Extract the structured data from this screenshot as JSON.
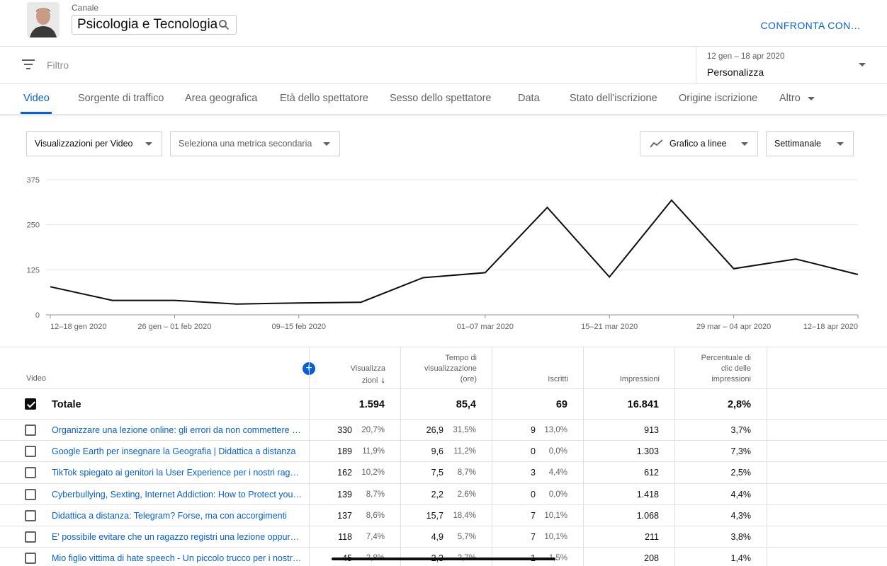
{
  "header": {
    "channel_label": "Canale",
    "channel_name": "Psicologia e Tecnologia",
    "compare_label": "CONFRONTA CON…"
  },
  "filterbar": {
    "placeholder": "Filtro",
    "date_range": "12 gen – 18 apr 2020",
    "date_value": "Personalizza"
  },
  "tabs": [
    {
      "label": "Video"
    },
    {
      "label": "Sorgente di traffico"
    },
    {
      "label": "Area geografica"
    },
    {
      "label": "Età dello spettatore"
    },
    {
      "label": "Sesso dello spettatore"
    },
    {
      "label": "Data"
    },
    {
      "label": "Stato dell'iscrizione"
    },
    {
      "label": "Origine iscrizione"
    },
    {
      "label": "Altro"
    }
  ],
  "controls": {
    "metric": "Visualizzazioni per Video",
    "secondary": "Seleziona una metrica secondaria",
    "chart_type": "Grafico a linee",
    "interval": "Settimanale"
  },
  "chart_data": {
    "type": "line",
    "x": [
      "12–18 gen 2020",
      "19–25 gen 2020",
      "26 gen – 01 feb 2020",
      "02–08 feb 2020",
      "09–15 feb 2020",
      "16–22 feb 2020",
      "23–29 feb 2020",
      "01–07 mar 2020",
      "08–14 mar 2020",
      "15–21 mar 2020",
      "22–28 mar 2020",
      "29 mar – 04 apr 2020",
      "05–11 apr 2020",
      "12–18 apr 2020"
    ],
    "x_tick_labels": [
      "12–18 gen 2020",
      "26 gen – 01 feb 2020",
      "09–15 feb 2020",
      "01–07 mar 2020",
      "15–21 mar 2020",
      "29 mar – 04 apr 2020",
      "12–18 apr 2020"
    ],
    "x_tick_indices": [
      0,
      2,
      4,
      7,
      9,
      11,
      13
    ],
    "values": [
      78,
      40,
      40,
      30,
      33,
      35,
      103,
      117,
      298,
      105,
      318,
      128,
      155,
      112
    ],
    "y_ticks": [
      "0",
      "125",
      "250",
      "375"
    ],
    "ylim": [
      0,
      375
    ],
    "grid": true,
    "line_color": "#0d0d0d"
  },
  "table": {
    "headers": {
      "video": "Video",
      "views_1": "Visualizza",
      "views_2": "zioni",
      "watch_1": "Tempo di",
      "watch_2": "visualizzazione",
      "watch_3": "(ore)",
      "subs": "Iscritti",
      "impr": "Impressioni",
      "ctr_1": "Percentuale di",
      "ctr_2": "clic delle",
      "ctr_3": "impressioni"
    },
    "add_symbol": "+",
    "sort_symbol": "↓",
    "total": {
      "label": "Totale",
      "views": "1.594",
      "watch": "85,4",
      "subs": "69",
      "impr": "16.841",
      "ctr": "2,8%"
    },
    "rows": [
      {
        "title": "Organizzare una lezione online: gli errori da non commettere e c…",
        "views": "330",
        "views_pct": "20,7%",
        "watch": "26,9",
        "watch_pct": "31,5%",
        "subs": "9",
        "subs_pct": "13,0%",
        "impr": "913",
        "ctr": "3,7%"
      },
      {
        "title": "Google Earth per insegnare la Geografia | Didattica a distanza",
        "views": "189",
        "views_pct": "11,9%",
        "watch": "9,6",
        "watch_pct": "11,2%",
        "subs": "0",
        "subs_pct": "0,0%",
        "impr": "1.303",
        "ctr": "7,3%"
      },
      {
        "title": "TikTok spiegato ai genitori la User Experience per i nostri ragazzi…",
        "views": "162",
        "views_pct": "10,2%",
        "watch": "7,5",
        "watch_pct": "8,7%",
        "subs": "3",
        "subs_pct": "4,4%",
        "impr": "612",
        "ctr": "2,5%"
      },
      {
        "title": "Cyberbullying, Sexting, Internet Addiction: How to Protect your C…",
        "views": "139",
        "views_pct": "8,7%",
        "watch": "2,2",
        "watch_pct": "2,6%",
        "subs": "0",
        "subs_pct": "0,0%",
        "impr": "1.418",
        "ctr": "4,4%"
      },
      {
        "title": "Didattica a distanza: Telegram? Forse, ma con accorgimenti",
        "views": "137",
        "views_pct": "8,6%",
        "watch": "15,7",
        "watch_pct": "18,4%",
        "subs": "7",
        "subs_pct": "10,1%",
        "impr": "1.068",
        "ctr": "4,3%"
      },
      {
        "title": "E' possibile evitare che un ragazzo registri una lezione oppure fa…",
        "views": "118",
        "views_pct": "7,4%",
        "watch": "4,9",
        "watch_pct": "5,7%",
        "subs": "7",
        "subs_pct": "10,1%",
        "impr": "211",
        "ctr": "3,8%"
      },
      {
        "title": "Mio figlio vittima di hate speech - Un piccolo trucco per i nostri ra…",
        "views": "45",
        "views_pct": "2,8%",
        "watch": "2,3",
        "watch_pct": "2,7%",
        "subs": "1",
        "subs_pct": "1,5%",
        "impr": "208",
        "ctr": "1,4%"
      }
    ]
  }
}
